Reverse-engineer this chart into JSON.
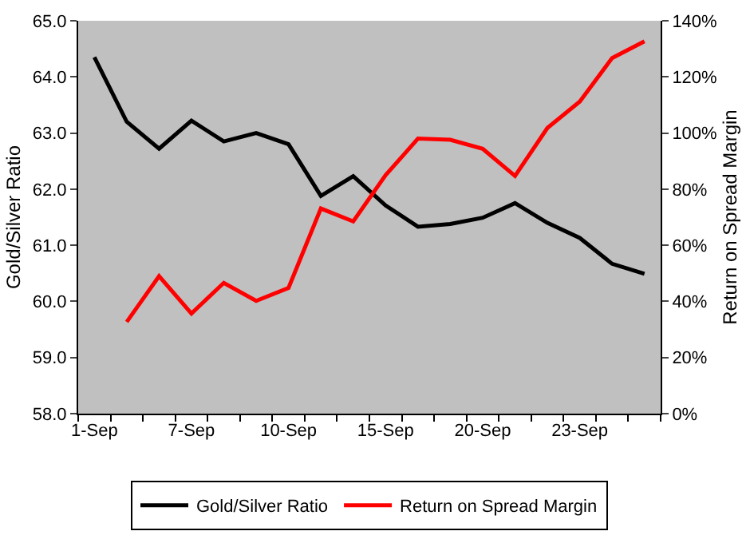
{
  "chart_data": {
    "type": "line",
    "categories": [
      "1-Sep",
      null,
      null,
      "7-Sep",
      null,
      null,
      "10-Sep",
      null,
      null,
      "15-Sep",
      null,
      null,
      "20-Sep",
      null,
      null,
      "23-Sep",
      null,
      null
    ],
    "series": [
      {
        "name": "Gold/Silver Ratio",
        "color": "#000000",
        "values": [
          64.35,
          63.2,
          62.72,
          63.22,
          62.85,
          63.0,
          62.8,
          61.88,
          62.23,
          61.71,
          61.33,
          61.38,
          61.49,
          61.75,
          61.4,
          61.13,
          60.67,
          60.49
        ]
      },
      {
        "name": "Return on Spread Margin",
        "color": "#ff0000",
        "axis": "y2",
        "values": [
          null,
          32.7,
          49,
          35.7,
          46.6,
          40.2,
          44.8,
          73.1,
          68.5,
          85,
          98,
          97.6,
          94.4,
          84.7,
          101.8,
          111.2,
          126.7,
          132.7
        ]
      }
    ],
    "ylabel": "Gold/Silver Ratio",
    "y2label": "Return on Spread Margin",
    "ylim": [
      58,
      65
    ],
    "yticks": [
      {
        "value": 58,
        "label": "58.0"
      },
      {
        "value": 59,
        "label": "59.0"
      },
      {
        "value": 60,
        "label": "60.0"
      },
      {
        "value": 61,
        "label": "61.0"
      },
      {
        "value": 62,
        "label": "62.0"
      },
      {
        "value": 63,
        "label": "63.0"
      },
      {
        "value": 64,
        "label": "64.0"
      },
      {
        "value": 65,
        "label": "65.0"
      }
    ],
    "y2lim": [
      0,
      140
    ],
    "y2ticks": [
      {
        "value": 0,
        "label": "0%"
      },
      {
        "value": 20,
        "label": "20%"
      },
      {
        "value": 40,
        "label": "40%"
      },
      {
        "value": 60,
        "label": "60%"
      },
      {
        "value": 80,
        "label": "80%"
      },
      {
        "value": 100,
        "label": "100%"
      },
      {
        "value": 120,
        "label": "120%"
      },
      {
        "value": 140,
        "label": "140%"
      }
    ],
    "grid": false,
    "legend": "bottom",
    "marker": "none",
    "line_style": "solid"
  }
}
